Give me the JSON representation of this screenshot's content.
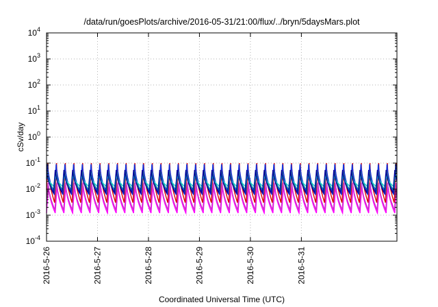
{
  "chart_data": {
    "type": "line",
    "title": "/data/run/goesPlots/archive/2016-05-31/21:00/flux/../bryn/5daysMars.plot",
    "xlabel": "Coordinated Universal Time (UTC)",
    "ylabel": "cSv/day",
    "yscale": "log",
    "ylim": [
      0.0001,
      10000
    ],
    "xlim": [
      "2016-05-26",
      "2016-06-01T21:00"
    ],
    "grid": true,
    "legend": "none",
    "x_ticks": [
      "2016-5-26",
      "2016-5-27",
      "2016-5-28",
      "2016-5-29",
      "2016-5-30",
      "2016-5-31"
    ],
    "y_ticks": [
      {
        "base": "10",
        "exp": "4"
      },
      {
        "base": "10",
        "exp": "3"
      },
      {
        "base": "10",
        "exp": "2"
      },
      {
        "base": "10",
        "exp": "1"
      },
      {
        "base": "10",
        "exp": "0"
      },
      {
        "base": "10",
        "exp": "-1"
      },
      {
        "base": "10",
        "exp": "-2"
      },
      {
        "base": "10",
        "exp": "-3"
      },
      {
        "base": "10",
        "exp": "-4"
      }
    ],
    "period_hours": 4.1,
    "series": [
      {
        "color": "#ff00ff",
        "peak": 0.015,
        "trough": 0.0012
      },
      {
        "color": "#cc33cc",
        "peak": 0.02,
        "trough": 0.0016
      },
      {
        "color": "#dd0000",
        "peak": 0.1,
        "trough": 0.003
      },
      {
        "color": "#1133dd",
        "peak": 0.11,
        "trough": 0.006
      },
      {
        "color": "#009999",
        "peak": 0.05,
        "trough": 0.009
      },
      {
        "color": "#22cccc",
        "peak": 0.035,
        "trough": 0.013
      },
      {
        "color": "#000099",
        "peak": 0.06,
        "trough": 0.007
      }
    ]
  }
}
